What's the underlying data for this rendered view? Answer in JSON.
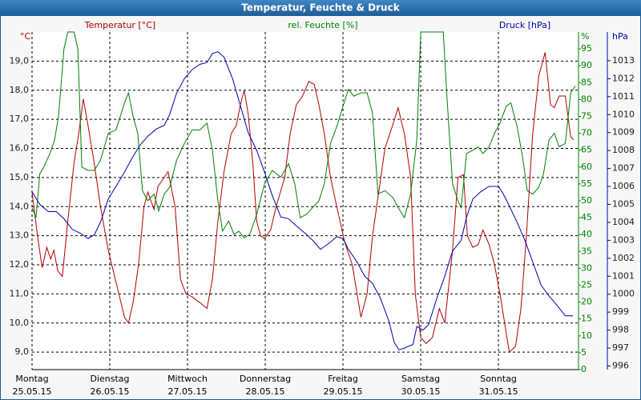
{
  "chart_data": {
    "type": "line",
    "title": "Temperatur, Feuchte & Druck",
    "grid": true,
    "xlim": [
      0,
      7.03
    ],
    "xticks": [
      {
        "value": 0,
        "label": "Montag",
        "date": "25.05.15"
      },
      {
        "value": 1,
        "label": "Dienstag",
        "date": "26.05.15"
      },
      {
        "value": 2,
        "label": "Mittwoch",
        "date": "27.05.15"
      },
      {
        "value": 3,
        "label": "Donnerstag",
        "date": "28.05.15"
      },
      {
        "value": 4,
        "label": "Freitag",
        "date": "29.05.15"
      },
      {
        "value": 5,
        "label": "Samstag",
        "date": "30.05.15"
      },
      {
        "value": 6,
        "label": "Sonntag",
        "date": "31.05.15"
      }
    ],
    "y_unit": "°C",
    "ylim": [
      8.4,
      20.0
    ],
    "yticks": [
      {
        "value": 9,
        "label": "9,0"
      },
      {
        "value": 10,
        "label": "10,0"
      },
      {
        "value": 11,
        "label": "11,0"
      },
      {
        "value": 12,
        "label": "12,0"
      },
      {
        "value": 13,
        "label": "13,0"
      },
      {
        "value": 14,
        "label": "14,0"
      },
      {
        "value": 15,
        "label": "15,0"
      },
      {
        "value": 16,
        "label": "16,0"
      },
      {
        "value": 17,
        "label": "17,0"
      },
      {
        "value": 18,
        "label": "18,0"
      },
      {
        "value": 19,
        "label": "19,0"
      }
    ],
    "y2_unit": "%",
    "y2lim": [
      0,
      100
    ],
    "y2ticks": [
      0,
      5,
      10,
      15,
      20,
      25,
      30,
      35,
      40,
      45,
      50,
      55,
      60,
      65,
      70,
      75,
      80,
      85,
      90,
      95
    ],
    "y3_unit": "hPa",
    "y3lim": [
      995.8,
      1014.6
    ],
    "y3ticks": [
      996,
      997,
      998,
      999,
      1000,
      1001,
      1002,
      1003,
      1004,
      1005,
      1006,
      1007,
      1008,
      1009,
      1010,
      1011,
      1012,
      1013
    ],
    "series": [
      {
        "name": "Temperatur [°C]",
        "color": "#b00000",
        "axis": "y",
        "x": [
          0,
          0.07,
          0.13,
          0.19,
          0.24,
          0.28,
          0.33,
          0.39,
          0.46,
          0.54,
          0.6,
          0.66,
          0.72,
          0.8,
          0.88,
          0.98,
          1.09,
          1.19,
          1.24,
          1.3,
          1.37,
          1.44,
          1.49,
          1.57,
          1.62,
          1.7,
          1.75,
          1.84,
          1.91,
          1.98,
          2.06,
          2.16,
          2.25,
          2.32,
          2.39,
          2.47,
          2.56,
          2.63,
          2.68,
          2.73,
          2.78,
          2.84,
          2.89,
          2.94,
          2.99,
          3.07,
          3.14,
          3.25,
          3.32,
          3.4,
          3.48,
          3.56,
          3.63,
          3.69,
          3.76,
          3.84,
          3.92,
          4.02,
          4.12,
          4.23,
          4.31,
          4.38,
          4.46,
          4.54,
          4.64,
          4.71,
          4.79,
          4.87,
          4.93,
          5.0,
          5.07,
          5.15,
          5.24,
          5.31,
          5.41,
          5.48,
          5.55,
          5.6,
          5.67,
          5.74,
          5.8,
          5.88,
          5.95,
          6.02,
          6.08,
          6.14,
          6.22,
          6.29,
          6.36,
          6.44,
          6.52,
          6.6,
          6.67,
          6.72,
          6.78,
          6.86,
          6.93,
          6.97
        ],
        "values": [
          14.5,
          13.0,
          11.9,
          12.6,
          12.2,
          12.5,
          11.8,
          11.6,
          13.5,
          15.5,
          16.5,
          17.7,
          16.8,
          15.5,
          14.0,
          12.5,
          11.3,
          10.2,
          10.0,
          10.7,
          12.0,
          14.0,
          14.5,
          13.9,
          14.7,
          15.0,
          15.2,
          14.0,
          11.5,
          11.0,
          10.9,
          10.7,
          10.5,
          11.5,
          13.5,
          15.2,
          16.5,
          16.8,
          17.5,
          18.0,
          17.2,
          15.5,
          13.5,
          13.0,
          12.9,
          13.2,
          14.0,
          15.0,
          16.5,
          17.5,
          17.8,
          18.3,
          18.2,
          17.5,
          16.5,
          15.0,
          14.0,
          12.8,
          12.0,
          10.2,
          11.0,
          13.0,
          14.5,
          16.0,
          16.8,
          17.4,
          16.5,
          15.0,
          11.0,
          9.5,
          9.3,
          9.5,
          10.5,
          10.0,
          12.5,
          15.0,
          15.1,
          13.0,
          12.6,
          12.7,
          13.2,
          12.7,
          12.0,
          11.0,
          10.0,
          9.0,
          9.2,
          10.5,
          13.0,
          16.5,
          18.5,
          19.3,
          17.5,
          17.4,
          17.8,
          17.8,
          16.4,
          16.3
        ]
      },
      {
        "name": "rel. Feuchte [%]",
        "color": "#008000",
        "axis": "y2",
        "x": [
          0,
          0.05,
          0.1,
          0.15,
          0.23,
          0.29,
          0.34,
          0.41,
          0.46,
          0.54,
          0.59,
          0.64,
          0.72,
          0.8,
          0.88,
          0.98,
          1.08,
          1.19,
          1.24,
          1.3,
          1.36,
          1.42,
          1.49,
          1.57,
          1.63,
          1.7,
          1.77,
          1.86,
          1.96,
          2.06,
          2.16,
          2.25,
          2.32,
          2.39,
          2.45,
          2.53,
          2.6,
          2.66,
          2.73,
          2.8,
          2.89,
          2.99,
          3.09,
          3.2,
          3.3,
          3.38,
          3.45,
          3.53,
          3.61,
          3.69,
          3.76,
          3.84,
          3.92,
          4.0,
          4.07,
          4.14,
          4.23,
          4.31,
          4.38,
          4.45,
          4.54,
          4.64,
          4.71,
          4.79,
          4.87,
          4.95,
          5.0,
          5.1,
          5.21,
          5.29,
          5.34,
          5.41,
          5.48,
          5.52,
          5.59,
          5.67,
          5.74,
          5.8,
          5.88,
          5.95,
          6.02,
          6.1,
          6.16,
          6.24,
          6.31,
          6.37,
          6.44,
          6.52,
          6.58,
          6.65,
          6.72,
          6.78,
          6.86,
          6.93,
          6.99
        ],
        "values": [
          48,
          45,
          58,
          60,
          64,
          68,
          75,
          95,
          100,
          100,
          95,
          60,
          59,
          59,
          62,
          70,
          71,
          79,
          82,
          75,
          70,
          53,
          50,
          52,
          47,
          52,
          54,
          62,
          67,
          71,
          71,
          73,
          65,
          50,
          41,
          44,
          40,
          41,
          39,
          40,
          46,
          55,
          59,
          57,
          61,
          55,
          45,
          46,
          48,
          50,
          55,
          67,
          72,
          78,
          83,
          81,
          82,
          82,
          76,
          52,
          53,
          51,
          48,
          45,
          52,
          68,
          100,
          100,
          100,
          100,
          80,
          55,
          50,
          48,
          64,
          65,
          66,
          64,
          66,
          70,
          73,
          78,
          79,
          72,
          63,
          53,
          52,
          54,
          58,
          68,
          70,
          66,
          67,
          82,
          84
        ]
      },
      {
        "name": "Druck [hPa]",
        "color": "#0000b0",
        "axis": "y3",
        "x": [
          0,
          0.1,
          0.21,
          0.31,
          0.41,
          0.52,
          0.62,
          0.72,
          0.8,
          0.88,
          0.98,
          1.08,
          1.19,
          1.29,
          1.39,
          1.49,
          1.6,
          1.7,
          1.77,
          1.86,
          1.96,
          2.06,
          2.16,
          2.25,
          2.32,
          2.39,
          2.47,
          2.58,
          2.68,
          2.78,
          2.89,
          2.99,
          3.09,
          3.2,
          3.3,
          3.4,
          3.51,
          3.61,
          3.71,
          3.81,
          3.92,
          4.0,
          4.07,
          4.18,
          4.28,
          4.38,
          4.48,
          4.59,
          4.66,
          4.72,
          4.79,
          4.9,
          4.95,
          5.03,
          5.1,
          5.21,
          5.31,
          5.41,
          5.52,
          5.59,
          5.67,
          5.77,
          5.88,
          6.0,
          6.06,
          6.13,
          6.24,
          6.34,
          6.44,
          6.55,
          6.65,
          6.75,
          6.86,
          6.96
        ],
        "values": [
          1005.7,
          1005.0,
          1004.6,
          1004.6,
          1004.2,
          1003.6,
          1003.4,
          1003.1,
          1003.3,
          1004.0,
          1005.3,
          1006.0,
          1006.8,
          1007.6,
          1008.3,
          1008.8,
          1009.2,
          1009.4,
          1010.0,
          1011.2,
          1012.0,
          1012.5,
          1012.8,
          1012.9,
          1013.4,
          1013.5,
          1013.2,
          1012.0,
          1010.5,
          1009.0,
          1008.0,
          1006.8,
          1005.5,
          1004.3,
          1004.2,
          1003.8,
          1003.4,
          1003.0,
          1002.5,
          1002.8,
          1003.2,
          1003.1,
          1002.5,
          1001.8,
          1001.0,
          1000.6,
          999.8,
          998.5,
          997.3,
          996.9,
          997.0,
          997.2,
          998.2,
          998.0,
          998.3,
          999.8,
          1001.0,
          1002.4,
          1003.0,
          1004.3,
          1005.3,
          1005.7,
          1006.0,
          1006.0,
          1005.6,
          1005.0,
          1004.0,
          1003.0,
          1001.8,
          1000.5,
          999.9,
          999.4,
          998.8,
          998.8
        ]
      }
    ]
  }
}
